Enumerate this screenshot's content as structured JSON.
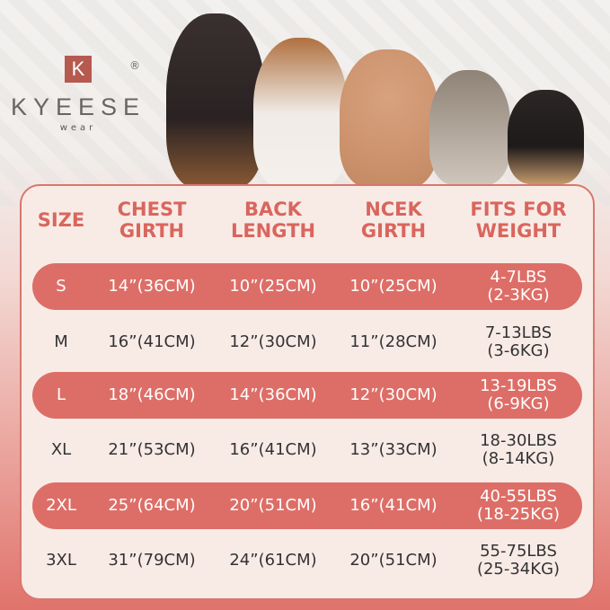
{
  "brand": {
    "letter": "K",
    "name": "KYEESE",
    "sub": "wear",
    "registered": "®"
  },
  "colors": {
    "accent": "#dd6e67",
    "header_text": "#d9665d",
    "card_bg": "#f8ebe6"
  },
  "table": {
    "headers": [
      [
        "SIZE",
        ""
      ],
      [
        "CHEST",
        "GIRTH"
      ],
      [
        "BACK",
        "LENGTH"
      ],
      [
        "NCEK",
        "GIRTH"
      ],
      [
        "FITS FOR",
        "WEIGHT"
      ]
    ],
    "rows": [
      {
        "size": "S",
        "chest": "14”(36CM)",
        "back": "10”(25CM)",
        "neck": "10”(25CM)",
        "weight": [
          "4-7LBS",
          "(2-3KG)"
        ]
      },
      {
        "size": "M",
        "chest": "16”(41CM)",
        "back": "12”(30CM)",
        "neck": "11”(28CM)",
        "weight": [
          "7-13LBS",
          "(3-6KG)"
        ]
      },
      {
        "size": "L",
        "chest": "18”(46CM)",
        "back": "14”(36CM)",
        "neck": "12”(30CM)",
        "weight": [
          "13-19LBS",
          "(6-9KG)"
        ]
      },
      {
        "size": "XL",
        "chest": "21”(53CM)",
        "back": "16”(41CM)",
        "neck": "13”(33CM)",
        "weight": [
          "18-30LBS",
          "(8-14KG)"
        ]
      },
      {
        "size": "2XL",
        "chest": "25”(64CM)",
        "back": "20”(51CM)",
        "neck": "16”(41CM)",
        "weight": [
          "40-55LBS",
          "(18-25KG)"
        ]
      },
      {
        "size": "3XL",
        "chest": "31”(79CM)",
        "back": "24”(61CM)",
        "neck": "20”(51CM)",
        "weight": [
          "55-75LBS",
          "(25-34KG)"
        ]
      }
    ]
  }
}
